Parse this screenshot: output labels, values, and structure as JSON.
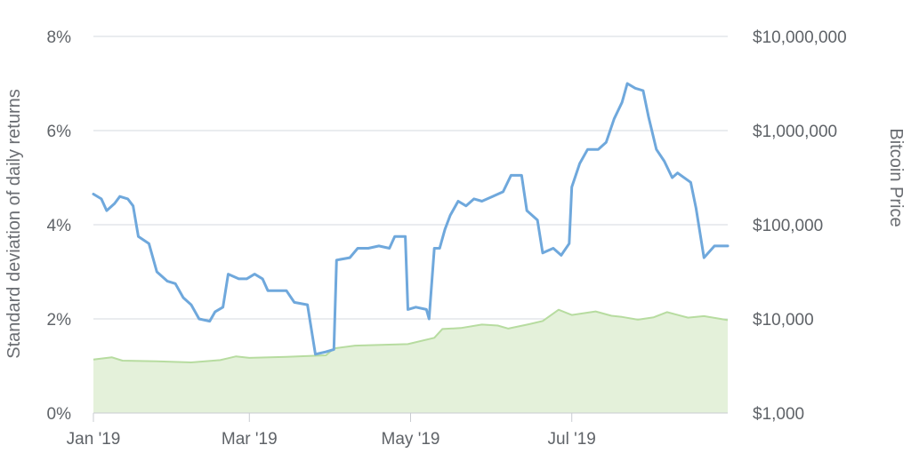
{
  "chart_data": {
    "type": "line",
    "title": "",
    "xlabel": "",
    "ylabel": "Standard deviation of daily returns",
    "y2label": "Bitcoin Price",
    "x_tick_labels": [
      "Jan '19",
      "Mar '19",
      "May '19",
      "Jul '19"
    ],
    "x_tick_dates": [
      "2019-01-01",
      "2019-03-01",
      "2019-05-01",
      "2019-07-01"
    ],
    "x_range": [
      "2019-01-01",
      "2019-08-29"
    ],
    "y_range": [
      0,
      8
    ],
    "y_ticks": [
      0,
      2,
      4,
      6,
      8
    ],
    "y_tick_labels": [
      "0%",
      "2%",
      "4%",
      "6%",
      "8%"
    ],
    "y2_scale": "log",
    "y2_range": [
      1000,
      10000000
    ],
    "y2_ticks": [
      1000,
      10000,
      100000,
      1000000,
      10000000
    ],
    "y2_tick_labels": [
      "$1,000",
      "$10,000",
      "$100,000",
      "$1,000,000",
      "$10,000,000"
    ],
    "grid": true,
    "legend": "none",
    "series": [
      {
        "axis": "left",
        "style": "line",
        "color": "#6fa8dc",
        "points": [
          [
            "2019-01-01",
            4.65
          ],
          [
            "2019-01-04",
            4.55
          ],
          [
            "2019-01-06",
            4.3
          ],
          [
            "2019-01-09",
            4.45
          ],
          [
            "2019-01-11",
            4.6
          ],
          [
            "2019-01-14",
            4.55
          ],
          [
            "2019-01-16",
            4.4
          ],
          [
            "2019-01-18",
            3.75
          ],
          [
            "2019-01-22",
            3.6
          ],
          [
            "2019-01-25",
            3.0
          ],
          [
            "2019-01-29",
            2.8
          ],
          [
            "2019-02-01",
            2.75
          ],
          [
            "2019-02-04",
            2.45
          ],
          [
            "2019-02-07",
            2.3
          ],
          [
            "2019-02-10",
            2.0
          ],
          [
            "2019-02-14",
            1.95
          ],
          [
            "2019-02-16",
            2.15
          ],
          [
            "2019-02-19",
            2.25
          ],
          [
            "2019-02-21",
            2.95
          ],
          [
            "2019-02-25",
            2.85
          ],
          [
            "2019-02-28",
            2.85
          ],
          [
            "2019-03-03",
            2.95
          ],
          [
            "2019-03-06",
            2.85
          ],
          [
            "2019-03-08",
            2.6
          ],
          [
            "2019-03-15",
            2.6
          ],
          [
            "2019-03-18",
            2.35
          ],
          [
            "2019-03-23",
            2.3
          ],
          [
            "2019-03-26",
            1.25
          ],
          [
            "2019-03-30",
            1.3
          ],
          [
            "2019-04-02",
            1.35
          ],
          [
            "2019-04-03",
            3.25
          ],
          [
            "2019-04-08",
            3.3
          ],
          [
            "2019-04-11",
            3.5
          ],
          [
            "2019-04-15",
            3.5
          ],
          [
            "2019-04-19",
            3.55
          ],
          [
            "2019-04-23",
            3.5
          ],
          [
            "2019-04-25",
            3.75
          ],
          [
            "2019-04-29",
            3.75
          ],
          [
            "2019-04-30",
            2.2
          ],
          [
            "2019-05-03",
            2.25
          ],
          [
            "2019-05-07",
            2.2
          ],
          [
            "2019-05-08",
            2.0
          ],
          [
            "2019-05-10",
            3.5
          ],
          [
            "2019-05-12",
            3.5
          ],
          [
            "2019-05-14",
            3.9
          ],
          [
            "2019-05-16",
            4.2
          ],
          [
            "2019-05-19",
            4.5
          ],
          [
            "2019-05-22",
            4.4
          ],
          [
            "2019-05-25",
            4.55
          ],
          [
            "2019-05-28",
            4.5
          ],
          [
            "2019-06-01",
            4.6
          ],
          [
            "2019-06-05",
            4.7
          ],
          [
            "2019-06-08",
            5.05
          ],
          [
            "2019-06-12",
            5.05
          ],
          [
            "2019-06-14",
            4.3
          ],
          [
            "2019-06-18",
            4.1
          ],
          [
            "2019-06-20",
            3.4
          ],
          [
            "2019-06-24",
            3.5
          ],
          [
            "2019-06-27",
            3.35
          ],
          [
            "2019-06-30",
            3.6
          ],
          [
            "2019-07-01",
            4.8
          ],
          [
            "2019-07-04",
            5.3
          ],
          [
            "2019-07-07",
            5.6
          ],
          [
            "2019-07-11",
            5.6
          ],
          [
            "2019-07-14",
            5.75
          ],
          [
            "2019-07-17",
            6.25
          ],
          [
            "2019-07-20",
            6.6
          ],
          [
            "2019-07-22",
            7.0
          ],
          [
            "2019-07-25",
            6.9
          ],
          [
            "2019-07-28",
            6.85
          ],
          [
            "2019-07-30",
            6.3
          ],
          [
            "2019-08-02",
            5.6
          ],
          [
            "2019-08-05",
            5.35
          ],
          [
            "2019-08-08",
            5.0
          ],
          [
            "2019-08-10",
            5.1
          ],
          [
            "2019-08-15",
            4.9
          ],
          [
            "2019-08-17",
            4.35
          ],
          [
            "2019-08-20",
            3.3
          ],
          [
            "2019-08-24",
            3.55
          ],
          [
            "2019-08-29",
            3.55
          ]
        ]
      },
      {
        "axis": "right",
        "style": "area",
        "color": "#b7dca0",
        "fill": "#e4f1da",
        "points": [
          [
            "2019-01-01",
            3700
          ],
          [
            "2019-01-08",
            3900
          ],
          [
            "2019-01-12",
            3600
          ],
          [
            "2019-01-25",
            3550
          ],
          [
            "2019-02-07",
            3450
          ],
          [
            "2019-02-18",
            3650
          ],
          [
            "2019-02-24",
            4000
          ],
          [
            "2019-03-01",
            3850
          ],
          [
            "2019-03-15",
            3950
          ],
          [
            "2019-03-30",
            4100
          ],
          [
            "2019-04-02",
            4850
          ],
          [
            "2019-04-10",
            5200
          ],
          [
            "2019-04-20",
            5300
          ],
          [
            "2019-04-30",
            5400
          ],
          [
            "2019-05-10",
            6300
          ],
          [
            "2019-05-13",
            7800
          ],
          [
            "2019-05-20",
            8000
          ],
          [
            "2019-05-28",
            8700
          ],
          [
            "2019-06-03",
            8500
          ],
          [
            "2019-06-07",
            7900
          ],
          [
            "2019-06-15",
            8800
          ],
          [
            "2019-06-20",
            9500
          ],
          [
            "2019-06-26",
            12500
          ],
          [
            "2019-07-01",
            11000
          ],
          [
            "2019-07-10",
            12000
          ],
          [
            "2019-07-16",
            10800
          ],
          [
            "2019-07-20",
            10500
          ],
          [
            "2019-07-26",
            9800
          ],
          [
            "2019-08-01",
            10400
          ],
          [
            "2019-08-06",
            11800
          ],
          [
            "2019-08-14",
            10300
          ],
          [
            "2019-08-20",
            10700
          ],
          [
            "2019-08-29",
            9700
          ]
        ]
      }
    ]
  }
}
